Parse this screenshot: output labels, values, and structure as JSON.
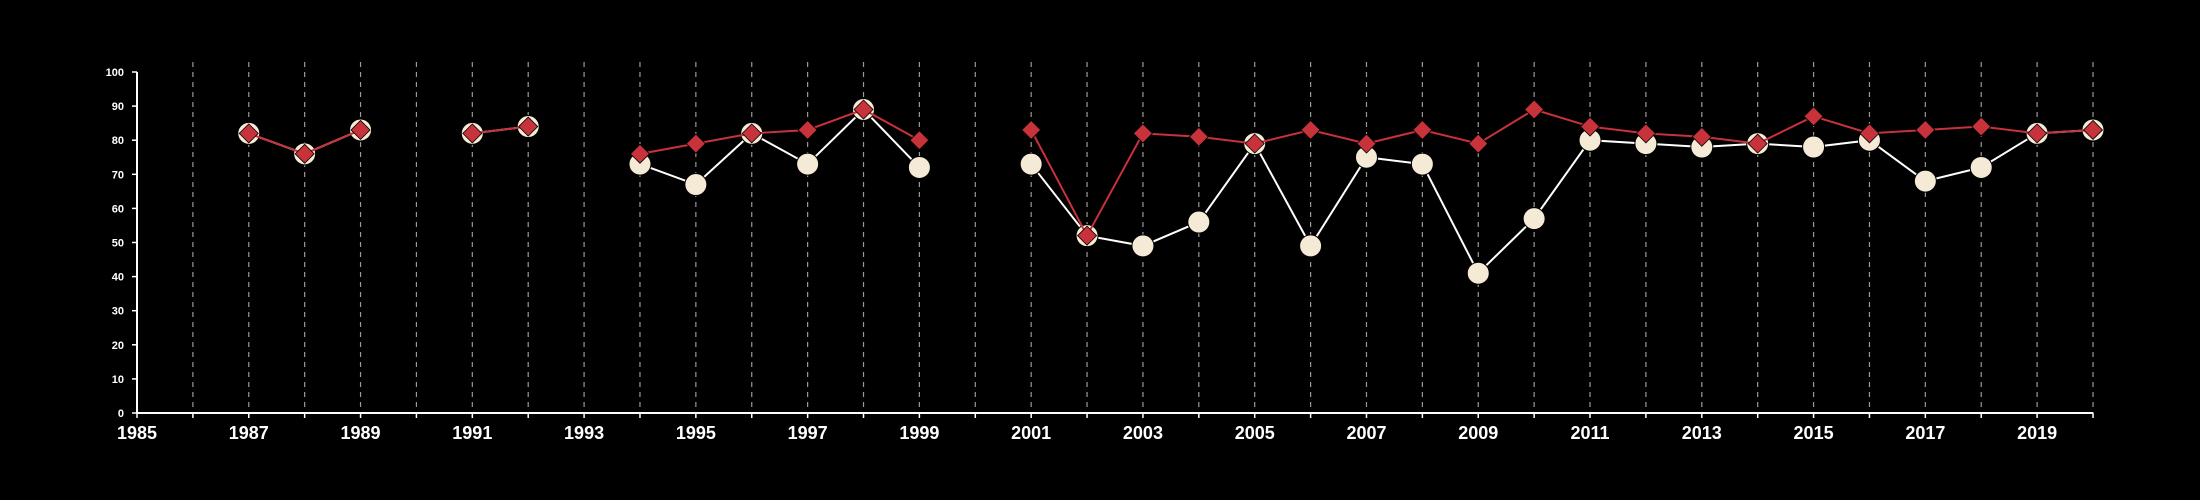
{
  "chart_data": {
    "type": "line",
    "title": "",
    "xlabel": "",
    "ylabel": "",
    "xlim": [
      1985,
      2020
    ],
    "ylim": [
      0,
      100
    ],
    "x_ticks": [
      1985,
      1987,
      1989,
      1991,
      1993,
      1995,
      1997,
      1999,
      2001,
      2003,
      2005,
      2007,
      2009,
      2011,
      2013,
      2015,
      2017,
      2019
    ],
    "y_ticks": [
      0,
      10,
      20,
      30,
      40,
      50,
      60,
      70,
      80,
      90,
      100
    ],
    "grid": "vertical-dashed",
    "background": "#000000",
    "series": [
      {
        "marker": "circle",
        "color": "#f5ead6",
        "line_color": "#ffffff",
        "points": [
          [
            1987,
            82
          ],
          [
            1988,
            76
          ],
          [
            1989,
            83
          ],
          null,
          [
            1991,
            82
          ],
          [
            1992,
            84
          ],
          null,
          [
            1994,
            73
          ],
          [
            1995,
            67
          ],
          [
            1996,
            82
          ],
          [
            1997,
            73
          ],
          [
            1998,
            89
          ],
          [
            1999,
            72
          ],
          null,
          [
            2001,
            73
          ],
          [
            2002,
            52
          ],
          [
            2003,
            49
          ],
          [
            2004,
            56
          ],
          [
            2005,
            79
          ],
          [
            2006,
            49
          ],
          [
            2007,
            75
          ],
          [
            2008,
            73
          ],
          [
            2009,
            41
          ],
          [
            2010,
            57
          ],
          [
            2011,
            80
          ],
          [
            2012,
            79
          ],
          [
            2013,
            78
          ],
          [
            2014,
            79
          ],
          [
            2015,
            78
          ],
          [
            2016,
            80
          ],
          [
            2017,
            68
          ],
          [
            2018,
            72
          ],
          [
            2019,
            82
          ],
          [
            2020,
            83
          ]
        ]
      },
      {
        "marker": "diamond",
        "color": "#c8323a",
        "line_color": "#c8323a",
        "points": [
          [
            1987,
            82
          ],
          [
            1988,
            76
          ],
          [
            1989,
            83
          ],
          null,
          [
            1991,
            82
          ],
          [
            1992,
            84
          ],
          null,
          [
            1994,
            76
          ],
          [
            1995,
            79
          ],
          [
            1996,
            82
          ],
          [
            1997,
            83
          ],
          [
            1998,
            89
          ],
          [
            1999,
            80
          ],
          null,
          [
            2001,
            83
          ],
          [
            2002,
            52
          ],
          [
            2003,
            82
          ],
          [
            2004,
            81
          ],
          [
            2005,
            79
          ],
          [
            2006,
            83
          ],
          [
            2007,
            79
          ],
          [
            2008,
            83
          ],
          [
            2009,
            79
          ],
          [
            2010,
            89
          ],
          [
            2011,
            84
          ],
          [
            2012,
            82
          ],
          [
            2013,
            81
          ],
          [
            2014,
            79
          ],
          [
            2015,
            87
          ],
          [
            2016,
            82
          ],
          [
            2017,
            83
          ],
          [
            2018,
            84
          ],
          [
            2019,
            82
          ],
          [
            2020,
            83
          ]
        ]
      }
    ]
  }
}
